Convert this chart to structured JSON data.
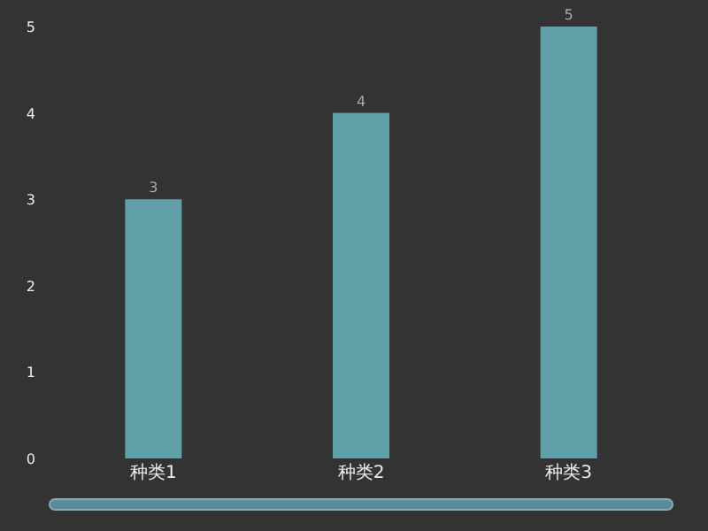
{
  "chart_data": {
    "type": "bar",
    "categories": [
      "种类1",
      "种类2",
      "种类3"
    ],
    "values": [
      3,
      4,
      5
    ],
    "color": "#61a0a8",
    "ylim": [
      0,
      5
    ],
    "yticks": [
      0,
      1,
      2,
      3,
      4,
      5
    ],
    "data_labels": true,
    "grid": false
  }
}
